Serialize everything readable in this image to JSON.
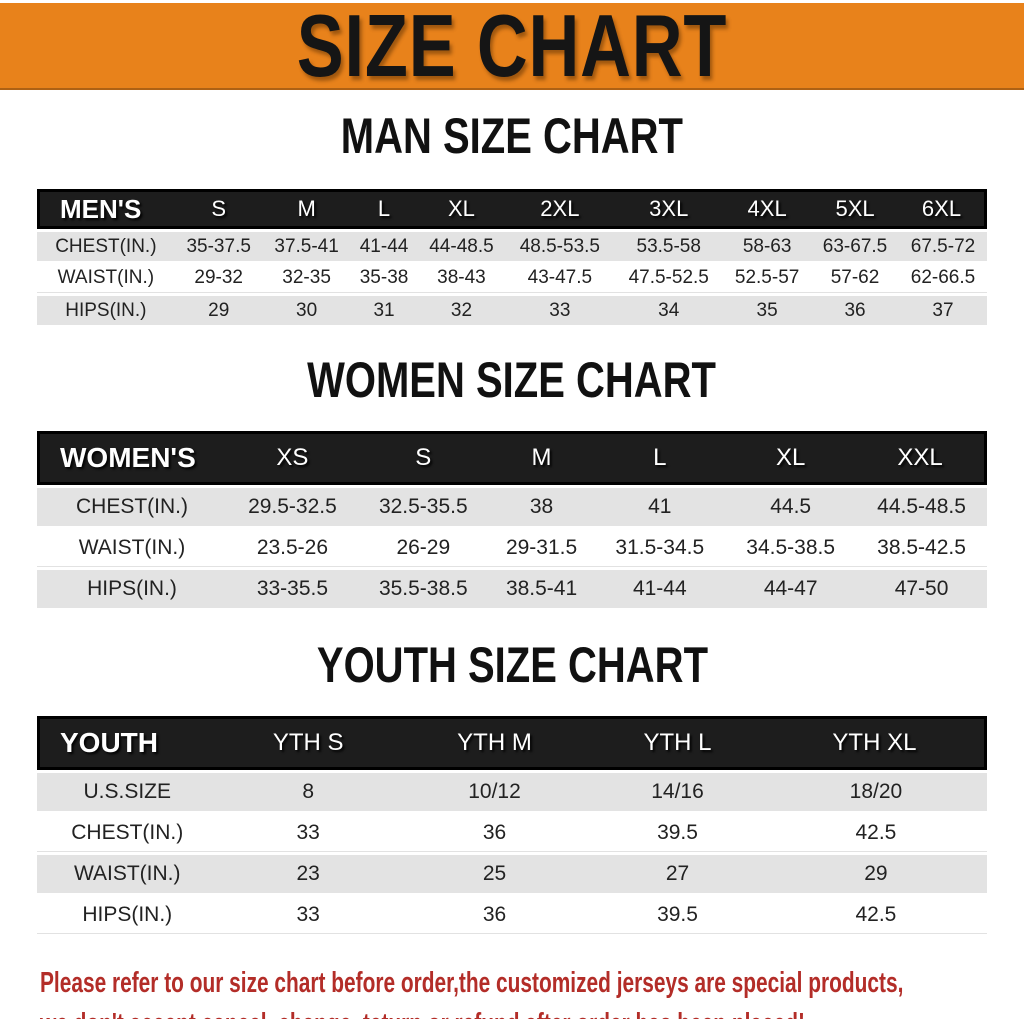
{
  "banner": {
    "title": "SIZE CHART"
  },
  "sections": {
    "man": {
      "title": "MAN SIZE CHART",
      "header_label": "MEN'S",
      "columns": [
        "S",
        "M",
        "L",
        "XL",
        "2XL",
        "3XL",
        "4XL",
        "5XL",
        "6XL"
      ],
      "rows": [
        {
          "label": "CHEST(IN.)",
          "values": [
            "35-37.5",
            "37.5-41",
            "41-44",
            "44-48.5",
            "48.5-53.5",
            "53.5-58",
            "58-63",
            "63-67.5",
            "67.5-72"
          ]
        },
        {
          "label": "WAIST(IN.)",
          "values": [
            "29-32",
            "32-35",
            "35-38",
            "38-43",
            "43-47.5",
            "47.5-52.5",
            "52.5-57",
            "57-62",
            "62-66.5"
          ]
        },
        {
          "label": "HIPS(IN.)",
          "values": [
            "29",
            "30",
            "31",
            "32",
            "33",
            "34",
            "35",
            "36",
            "37"
          ]
        }
      ]
    },
    "women": {
      "title": "WOMEN SIZE CHART",
      "header_label": "WOMEN'S",
      "columns": [
        "XS",
        "S",
        "M",
        "L",
        "XL",
        "XXL"
      ],
      "rows": [
        {
          "label": "CHEST(IN.)",
          "values": [
            "29.5-32.5",
            "32.5-35.5",
            "38",
            "41",
            "44.5",
            "44.5-48.5"
          ]
        },
        {
          "label": "WAIST(IN.)",
          "values": [
            "23.5-26",
            "26-29",
            "29-31.5",
            "31.5-34.5",
            "34.5-38.5",
            "38.5-42.5"
          ]
        },
        {
          "label": "HIPS(IN.)",
          "values": [
            "33-35.5",
            "35.5-38.5",
            "38.5-41",
            "41-44",
            "44-47",
            "47-50"
          ]
        }
      ]
    },
    "youth": {
      "title": "YOUTH SIZE CHART",
      "header_label": "YOUTH",
      "columns": [
        "YTH S",
        "YTH M",
        "YTH L",
        "YTH XL"
      ],
      "rows": [
        {
          "label": "U.S.SIZE",
          "values": [
            "8",
            "10/12",
            "14/16",
            "18/20"
          ]
        },
        {
          "label": "CHEST(IN.)",
          "values": [
            "33",
            "36",
            "39.5",
            "42.5"
          ]
        },
        {
          "label": "WAIST(IN.)",
          "values": [
            "23",
            "25",
            "27",
            "29"
          ]
        },
        {
          "label": "HIPS(IN.)",
          "values": [
            "33",
            "36",
            "39.5",
            "42.5"
          ]
        }
      ]
    }
  },
  "footer": {
    "line1": "Please refer to our size chart before order,the customized jerseys are special products,",
    "line2": "we don't accept cancel, change, teturn or refund after order has been placed!"
  },
  "colors": {
    "banner_bg": "#E8821B",
    "header_bg": "#1D1D1D",
    "header_border": "#000000",
    "row_stripe": "#E3E3E3",
    "title_text": "#111111",
    "header_text": "#FFFFFF",
    "body_text": "#222222",
    "footer_text": "#B32D28"
  }
}
